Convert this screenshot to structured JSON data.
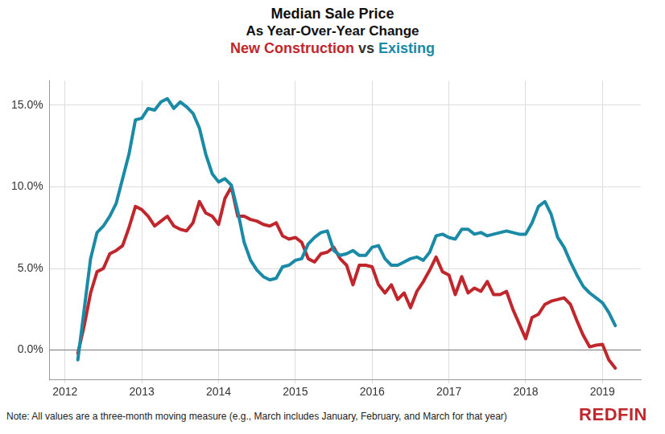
{
  "chart_data": {
    "type": "line",
    "title": "Median Sale Price",
    "subtitle": "As Year-Over-Year Change",
    "legend_separator": "vs",
    "note": "Note: All values are a three-month moving measure (e.g., March includes January, February, and March for that year)",
    "logo": "REDFIN",
    "legend": "top",
    "grid": true,
    "xlim": [
      2011.8,
      2019.5
    ],
    "xticks": [
      2012,
      2013,
      2014,
      2015,
      2016,
      2017,
      2018,
      2019
    ],
    "ylim": [
      -1.8,
      16.5
    ],
    "yticks": [
      {
        "value": 0,
        "label": "0.0%"
      },
      {
        "value": 5,
        "label": "5.0%"
      },
      {
        "value": 10,
        "label": "10.0%"
      },
      {
        "value": 15,
        "label": "15.0%"
      }
    ],
    "x": [
      2012.167,
      2012.25,
      2012.333,
      2012.417,
      2012.5,
      2012.583,
      2012.667,
      2012.75,
      2012.833,
      2012.917,
      2013.0,
      2013.083,
      2013.167,
      2013.25,
      2013.333,
      2013.417,
      2013.5,
      2013.583,
      2013.667,
      2013.75,
      2013.833,
      2013.917,
      2014.0,
      2014.083,
      2014.167,
      2014.25,
      2014.333,
      2014.417,
      2014.5,
      2014.583,
      2014.667,
      2014.75,
      2014.833,
      2014.917,
      2015.0,
      2015.083,
      2015.167,
      2015.25,
      2015.333,
      2015.417,
      2015.5,
      2015.583,
      2015.667,
      2015.75,
      2015.833,
      2015.917,
      2016.0,
      2016.083,
      2016.167,
      2016.25,
      2016.333,
      2016.417,
      2016.5,
      2016.583,
      2016.667,
      2016.75,
      2016.833,
      2016.917,
      2017.0,
      2017.083,
      2017.167,
      2017.25,
      2017.333,
      2017.417,
      2017.5,
      2017.583,
      2017.667,
      2017.75,
      2017.833,
      2017.917,
      2018.0,
      2018.083,
      2018.167,
      2018.25,
      2018.333,
      2018.417,
      2018.5,
      2018.583,
      2018.667,
      2018.75,
      2018.833,
      2018.917,
      2019.0,
      2019.083,
      2019.167
    ],
    "series": [
      {
        "name": "New Construction",
        "color": "#c0272d",
        "values": [
          -0.2,
          1.5,
          3.5,
          4.8,
          5.0,
          5.9,
          6.1,
          6.4,
          7.5,
          8.8,
          8.6,
          8.2,
          7.6,
          7.9,
          8.2,
          7.6,
          7.4,
          7.3,
          7.8,
          9.1,
          8.4,
          8.2,
          7.7,
          9.3,
          10.0,
          8.2,
          8.2,
          8.0,
          7.9,
          7.7,
          7.6,
          7.8,
          7.0,
          6.8,
          6.9,
          6.6,
          5.6,
          5.4,
          5.9,
          6.0,
          6.3,
          5.6,
          5.2,
          4.0,
          5.2,
          5.2,
          5.1,
          4.0,
          3.5,
          4.0,
          3.1,
          3.5,
          2.6,
          3.6,
          4.2,
          4.9,
          5.7,
          4.8,
          4.6,
          3.4,
          4.5,
          3.5,
          3.8,
          3.6,
          4.2,
          3.4,
          3.4,
          3.6,
          2.5,
          1.6,
          0.7,
          2.0,
          2.2,
          2.8,
          3.0,
          3.1,
          3.2,
          2.8,
          1.8,
          0.9,
          0.2,
          0.3,
          0.35,
          -0.6,
          -1.1
        ]
      },
      {
        "name": "Existing",
        "color": "#1b8aa6",
        "values": [
          -0.6,
          2.5,
          5.6,
          7.2,
          7.6,
          8.2,
          9.0,
          10.5,
          12.0,
          14.1,
          14.2,
          14.8,
          14.7,
          15.2,
          15.4,
          14.8,
          15.2,
          14.9,
          14.5,
          13.6,
          12.0,
          10.8,
          10.3,
          10.5,
          10.1,
          8.5,
          6.6,
          5.5,
          4.9,
          4.5,
          4.3,
          4.4,
          5.1,
          5.2,
          5.5,
          5.6,
          6.5,
          6.9,
          7.2,
          7.3,
          6.1,
          5.8,
          5.9,
          6.1,
          5.8,
          5.8,
          6.3,
          6.4,
          5.6,
          5.2,
          5.2,
          5.4,
          5.6,
          5.7,
          5.5,
          6.0,
          7.0,
          7.1,
          6.9,
          6.8,
          7.4,
          7.4,
          7.1,
          7.2,
          7.0,
          7.1,
          7.2,
          7.3,
          7.2,
          7.1,
          7.1,
          7.8,
          8.8,
          9.1,
          8.3,
          6.9,
          6.3,
          5.4,
          4.6,
          3.9,
          3.5,
          3.2,
          2.9,
          2.3,
          1.5
        ]
      }
    ]
  }
}
